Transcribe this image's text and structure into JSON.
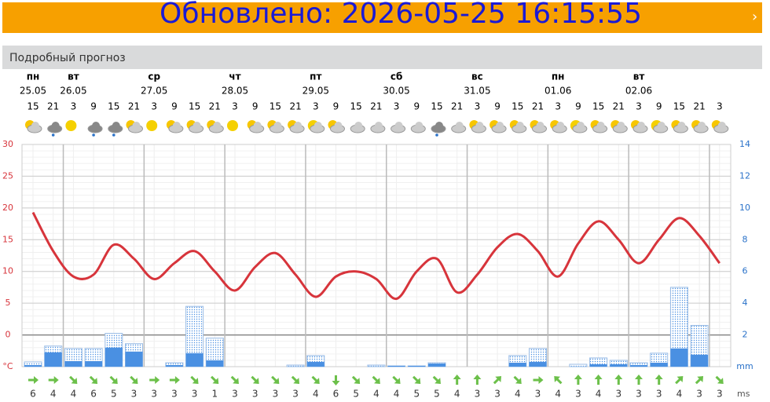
{
  "banner": {
    "title": "Обновлено: 2026-05-25 16:15:55"
  },
  "section": {
    "title": "Подробный прогноз"
  },
  "days": [
    {
      "name": "пн",
      "date": "25.05"
    },
    {
      "name": "вт",
      "date": "26.05"
    },
    {
      "name": "ср",
      "date": "27.05"
    },
    {
      "name": "чт",
      "date": "28.05"
    },
    {
      "name": "пт",
      "date": "29.05"
    },
    {
      "name": "сб",
      "date": "30.05"
    },
    {
      "name": "вс",
      "date": "31.05"
    },
    {
      "name": "пн",
      "date": "01.06"
    },
    {
      "name": "вт",
      "date": "02.06"
    }
  ],
  "chart_data": {
    "type": "line",
    "categories": [
      15,
      21,
      3,
      9,
      15,
      21,
      3,
      9,
      15,
      21,
      3,
      9,
      15,
      21,
      3,
      9,
      15,
      21,
      3,
      9,
      15,
      21,
      3,
      9,
      15,
      21,
      3,
      9,
      15,
      21,
      3,
      9,
      15,
      21,
      3
    ],
    "series": [
      {
        "name": "temperature",
        "color": "#d7343b",
        "values": [
          19.3,
          13.2,
          9.2,
          9.5,
          14.2,
          12,
          8.8,
          11.3,
          13.2,
          10,
          7,
          10.7,
          12.9,
          9.5,
          6,
          9.2,
          10,
          8.8,
          5.7,
          10,
          12,
          6.7,
          9.5,
          13.8,
          15.9,
          13.2,
          9.2,
          14.4,
          17.9,
          15,
          11.3,
          15,
          18.4,
          15.6,
          11.3
        ]
      },
      {
        "name": "precipitation",
        "axis": "y2",
        "color": "#4a90e2",
        "values": [
          0.1,
          0.9,
          0.35,
          0.35,
          1.2,
          0.95,
          0,
          0.1,
          0.85,
          0.4,
          0,
          0,
          0,
          0,
          0.3,
          0,
          0,
          0,
          0.05,
          0.05,
          0.2,
          0,
          0,
          0,
          0.25,
          0.3,
          0,
          0,
          0.15,
          0.15,
          0.1,
          0.25,
          1.15,
          0.75,
          0
        ]
      },
      {
        "name": "precipitation-possible",
        "axis": "y2",
        "color": "#4a90e2",
        "values": [
          0.3,
          1.3,
          1.15,
          1.15,
          2.1,
          1.45,
          0,
          0.25,
          3.8,
          1.8,
          0,
          0,
          0,
          0.1,
          0.7,
          0,
          0,
          0.1,
          0.05,
          0.05,
          0.25,
          0,
          0,
          0,
          0.7,
          1.15,
          0,
          0.15,
          0.55,
          0.4,
          0.25,
          0.85,
          5,
          2.6,
          0
        ]
      }
    ],
    "wind": {
      "unit": "ms",
      "values": [
        6,
        4,
        4,
        6,
        5,
        3,
        3,
        3,
        3,
        1,
        3,
        3,
        3,
        3,
        4,
        6,
        5,
        4,
        4,
        5,
        5,
        4,
        3,
        3,
        4,
        3,
        4,
        3,
        4,
        3,
        3,
        3,
        4,
        3,
        3
      ],
      "direction": [
        0,
        0,
        45,
        45,
        45,
        45,
        0,
        0,
        45,
        45,
        45,
        45,
        45,
        45,
        45,
        90,
        45,
        45,
        45,
        45,
        45,
        -90,
        -90,
        -45,
        45,
        0,
        -135,
        -90,
        -90,
        -90,
        -90,
        -90,
        -45,
        -45,
        45
      ]
    },
    "ylim": [
      -5,
      30
    ],
    "yticks": [
      {
        "value": -5,
        "label": "°C"
      },
      0,
      5,
      10,
      15,
      20,
      25,
      30
    ],
    "y2lim": [
      0,
      14
    ],
    "y2ticks": [
      {
        "value": 0,
        "label": "mm"
      },
      2,
      4,
      6,
      8,
      10,
      12,
      14
    ],
    "grid": true
  }
}
